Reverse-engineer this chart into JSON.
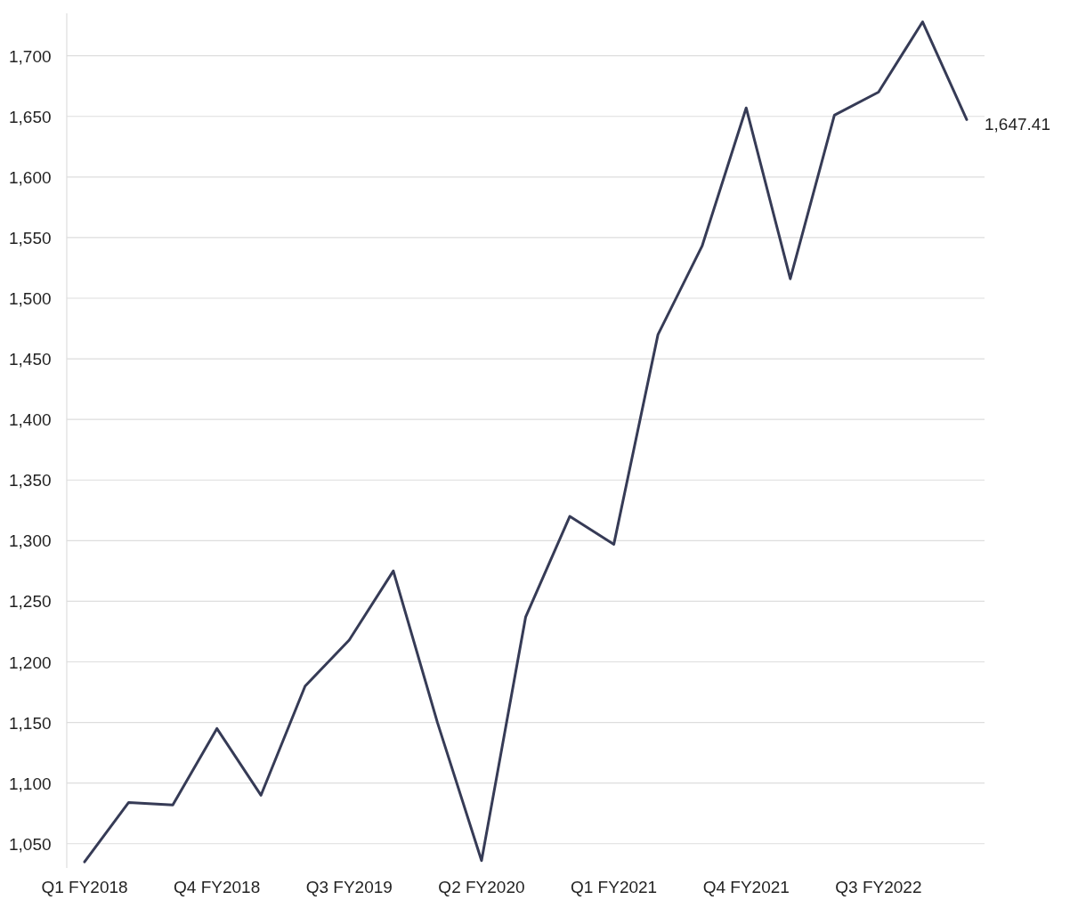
{
  "chart_data": {
    "type": "line",
    "categories": [
      "Q1 FY2018",
      null,
      null,
      "Q4 FY2018",
      null,
      null,
      "Q3 FY2019",
      null,
      null,
      "Q2 FY2020",
      null,
      null,
      "Q1 FY2021",
      null,
      null,
      "Q4 FY2021",
      null,
      null,
      "Q3 FY2022",
      null,
      null
    ],
    "series": [
      {
        "color": "#363b56",
        "values": [
          1035,
          1084,
          1082,
          1145,
          1090,
          1180,
          1218,
          1275,
          1150,
          1036,
          1237,
          1320,
          1297,
          1470,
          1543,
          1657,
          1516,
          1651,
          1670,
          1728,
          1647.41
        ],
        "value_labels": [
          null,
          null,
          null,
          null,
          null,
          null,
          null,
          null,
          null,
          null,
          null,
          null,
          null,
          null,
          null,
          null,
          null,
          null,
          null,
          null,
          "1,647.41"
        ]
      }
    ],
    "ylim": [
      1030,
      1735
    ],
    "yticks": [
      {
        "value": 1050,
        "label": "1,050"
      },
      {
        "value": 1100,
        "label": "1,100"
      },
      {
        "value": 1150,
        "label": "1,150"
      },
      {
        "value": 1200,
        "label": "1,200"
      },
      {
        "value": 1250,
        "label": "1,250"
      },
      {
        "value": 1300,
        "label": "1,300"
      },
      {
        "value": 1350,
        "label": "1,350"
      },
      {
        "value": 1400,
        "label": "1,400"
      },
      {
        "value": 1450,
        "label": "1,450"
      },
      {
        "value": 1500,
        "label": "1,500"
      },
      {
        "value": 1550,
        "label": "1,550"
      },
      {
        "value": 1600,
        "label": "1,600"
      },
      {
        "value": 1650,
        "label": "1,650"
      },
      {
        "value": 1700,
        "label": "1,700"
      }
    ],
    "grid": "y",
    "marker": "none",
    "line_style": "solid"
  }
}
